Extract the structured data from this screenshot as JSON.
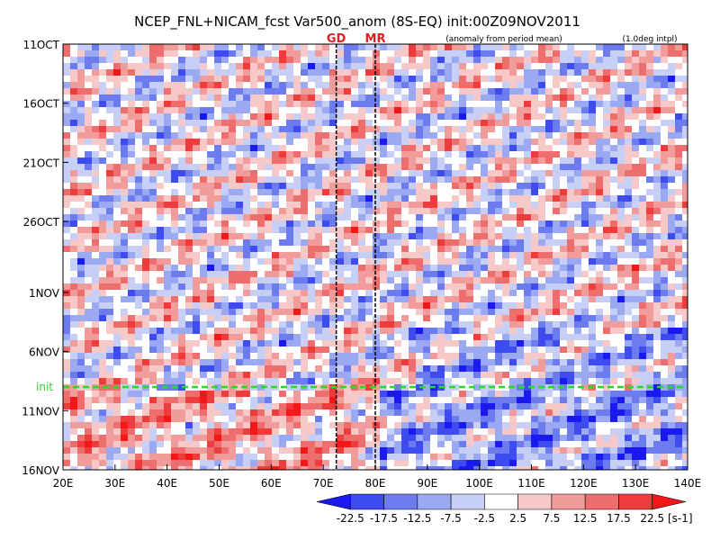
{
  "chart_data": {
    "type": "heatmap",
    "title": "NCEP_FNL+NICAM_fcst Var500_anom (8S-EQ) init:00Z09NOV2011",
    "subtitle_left": "(anomaly from period mean)",
    "subtitle_right": "(1.0deg intpl)",
    "x_ticks": [
      "20E",
      "30E",
      "40E",
      "50E",
      "60E",
      "70E",
      "80E",
      "90E",
      "100E",
      "110E",
      "120E",
      "130E",
      "140E"
    ],
    "x_range": [
      20,
      140
    ],
    "y_ticks": [
      "11OCT",
      "16OCT",
      "21OCT",
      "26OCT",
      "1NOV",
      "6NOV",
      "11NOV",
      "16NOV"
    ],
    "y_tick_days": [
      0,
      5,
      10,
      15,
      21,
      26,
      31,
      36
    ],
    "y_range_days": [
      0,
      36
    ],
    "init_label": "init",
    "init_day": 29,
    "init_color": "#22dd22",
    "vertical_markers": [
      {
        "label": "GD",
        "lon": 72.5
      },
      {
        "label": "MR",
        "lon": 80
      }
    ],
    "marker_color": "#e02020",
    "colorbar": {
      "levels": [
        "-22.5",
        "-17.5",
        "-12.5",
        "-7.5",
        "-2.5",
        "2.5",
        "7.5",
        "12.5",
        "17.5",
        "22.5"
      ],
      "colors": [
        "#1a1af0",
        "#3d4bef",
        "#6c7bee",
        "#9ba8f2",
        "#c8cff7",
        "#ffffff",
        "#f7c8c8",
        "#f19b9b",
        "#ee6e6e",
        "#ee3c3c",
        "#f21818"
      ],
      "units": "[s-1]"
    }
  }
}
